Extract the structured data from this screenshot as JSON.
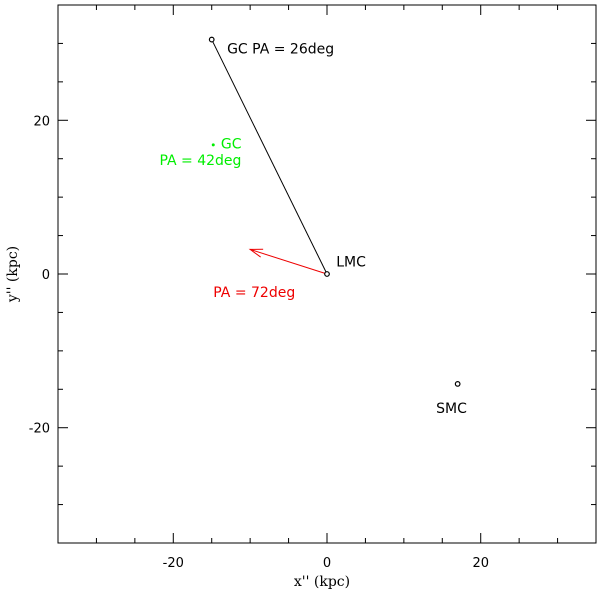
{
  "chart_data": {
    "type": "scatter",
    "xlabel": "x'' (kpc)",
    "ylabel": "y'' (kpc)",
    "xlim": [
      -35,
      35
    ],
    "ylim": [
      -35,
      35
    ],
    "x_ticks": [
      -20,
      0,
      20
    ],
    "y_ticks": [
      -20,
      0,
      20
    ],
    "x_tick_labels": [
      "-20",
      "0",
      "20"
    ],
    "y_tick_labels": [
      "-20",
      "0",
      "20"
    ],
    "x_minor_step": 5,
    "y_minor_step": 5,
    "grid": false,
    "points": [
      {
        "id": "lmc",
        "x": 0,
        "y": 0,
        "marker": "open-circle",
        "color": "#000000"
      },
      {
        "id": "gc_black",
        "x": -15.0,
        "y": 30.5,
        "marker": "open-circle",
        "color": "#000000"
      },
      {
        "id": "smc",
        "x": 17.0,
        "y": -14.3,
        "marker": "open-circle",
        "color": "#000000"
      },
      {
        "id": "gc_green",
        "x": -14.8,
        "y": 16.8,
        "marker": "dot",
        "color": "#00ee00"
      }
    ],
    "lines": [
      {
        "id": "gc_line",
        "from": [
          0,
          0
        ],
        "to": [
          -15.0,
          30.5
        ],
        "color": "#000000",
        "arrow": false
      },
      {
        "id": "pa_arrow",
        "from": [
          0,
          0
        ],
        "to": [
          -10.0,
          3.2
        ],
        "color": "#ee0000",
        "arrow": true
      }
    ],
    "annotations": [
      {
        "id": "lmc_label",
        "text": "LMC",
        "x": 1.2,
        "y": 1.0,
        "color": "#000000",
        "anchor": "start"
      },
      {
        "id": "gc_pa_label",
        "text": "GC PA = 26deg",
        "x": -13.0,
        "y": 28.7,
        "color": "#000000",
        "anchor": "start"
      },
      {
        "id": "smc_label",
        "text": "SMC",
        "x": 16.2,
        "y": -18.1,
        "color": "#000000",
        "anchor": "middle"
      },
      {
        "id": "gc_green_label",
        "text": "GC",
        "x": -13.8,
        "y": 16.3,
        "color": "#00ee00",
        "anchor": "start"
      },
      {
        "id": "pa42_label",
        "text": "PA = 42deg",
        "x": -21.8,
        "y": 14.2,
        "color": "#00ee00",
        "anchor": "start"
      },
      {
        "id": "pa72_label",
        "text": "PA = 72deg",
        "x": -14.8,
        "y": -3.0,
        "color": "#ee0000",
        "anchor": "start"
      }
    ]
  }
}
